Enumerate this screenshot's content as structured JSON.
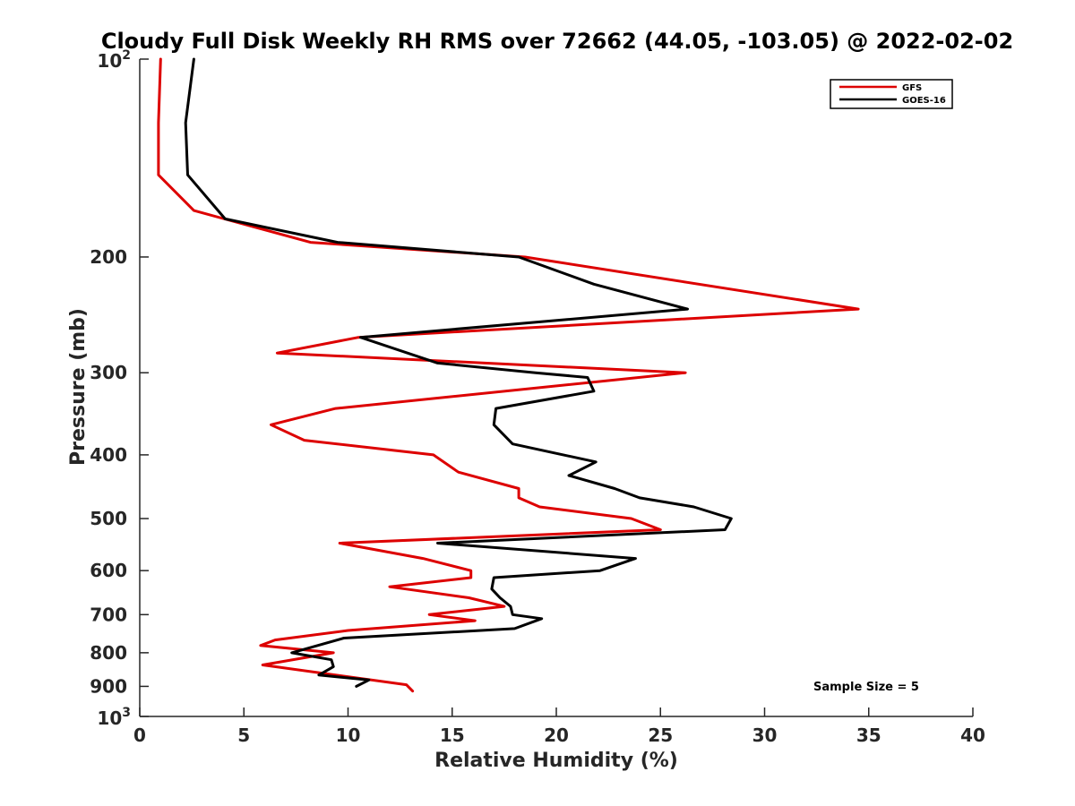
{
  "chart_data": {
    "type": "line",
    "title": "Cloudy Full Disk Weekly RH RMS over 72662 (44.05, -103.05) @ 2022-02-02",
    "xlabel": "Relative Humidity (%)",
    "ylabel": "Pressure (mb)",
    "xlim": [
      0,
      40
    ],
    "ylim": [
      100,
      1000
    ],
    "y_scale": "log",
    "y_reversed": true,
    "grid": false,
    "legend_position": "top-right",
    "x_ticks": [
      0,
      5,
      10,
      15,
      20,
      25,
      30,
      35,
      40
    ],
    "x_tick_labels": [
      "0",
      "5",
      "10",
      "15",
      "20",
      "25",
      "30",
      "35",
      "40"
    ],
    "y_ticks": [
      200,
      300,
      400,
      500,
      600,
      700,
      800,
      900
    ],
    "y_tick_labels": [
      "200",
      "300",
      "400",
      "500",
      "600",
      "700",
      "800",
      "900"
    ],
    "y_end_labels": {
      "top": {
        "base": "10",
        "exp": "2"
      },
      "bottom": {
        "base": "10",
        "exp": "3"
      }
    },
    "annotation": "Sample Size = 5",
    "series": [
      {
        "name": "GFS",
        "color": "#dd0000",
        "points": [
          [
            1.0,
            100
          ],
          [
            0.9,
            125
          ],
          [
            0.9,
            150
          ],
          [
            2.6,
            170
          ],
          [
            8.2,
            190
          ],
          [
            18.5,
            200
          ],
          [
            34.5,
            240
          ],
          [
            10.5,
            265
          ],
          [
            6.6,
            280
          ],
          [
            26.2,
            300
          ],
          [
            9.4,
            340
          ],
          [
            6.3,
            360
          ],
          [
            7.9,
            380
          ],
          [
            14.1,
            400
          ],
          [
            15.3,
            425
          ],
          [
            18.2,
            450
          ],
          [
            18.2,
            465
          ],
          [
            19.2,
            480
          ],
          [
            23.6,
            500
          ],
          [
            25.0,
            520
          ],
          [
            9.6,
            545
          ],
          [
            13.6,
            575
          ],
          [
            15.9,
            600
          ],
          [
            15.9,
            615
          ],
          [
            12.0,
            635
          ],
          [
            15.8,
            660
          ],
          [
            17.5,
            680
          ],
          [
            13.9,
            700
          ],
          [
            16.1,
            715
          ],
          [
            10.0,
            740
          ],
          [
            6.5,
            765
          ],
          [
            5.8,
            780
          ],
          [
            9.3,
            800
          ],
          [
            5.9,
            835
          ],
          [
            12.8,
            895
          ],
          [
            13.1,
            915
          ]
        ]
      },
      {
        "name": "GOES-16",
        "color": "#000000",
        "points": [
          [
            2.6,
            100
          ],
          [
            2.2,
            125
          ],
          [
            2.3,
            150
          ],
          [
            4.1,
            175
          ],
          [
            9.5,
            190
          ],
          [
            18.2,
            200
          ],
          [
            21.8,
            220
          ],
          [
            26.3,
            240
          ],
          [
            10.6,
            265
          ],
          [
            14.3,
            290
          ],
          [
            19.0,
            300
          ],
          [
            21.5,
            305
          ],
          [
            21.8,
            320
          ],
          [
            17.1,
            340
          ],
          [
            17.0,
            360
          ],
          [
            17.9,
            385
          ],
          [
            21.9,
            410
          ],
          [
            20.6,
            430
          ],
          [
            22.8,
            450
          ],
          [
            24.0,
            465
          ],
          [
            26.6,
            480
          ],
          [
            28.4,
            500
          ],
          [
            28.1,
            520
          ],
          [
            14.3,
            545
          ],
          [
            23.8,
            575
          ],
          [
            22.1,
            600
          ],
          [
            17.0,
            615
          ],
          [
            16.9,
            640
          ],
          [
            17.3,
            660
          ],
          [
            17.8,
            680
          ],
          [
            17.9,
            700
          ],
          [
            19.3,
            710
          ],
          [
            18.0,
            735
          ],
          [
            9.8,
            760
          ],
          [
            7.3,
            800
          ],
          [
            9.2,
            820
          ],
          [
            9.3,
            840
          ],
          [
            8.6,
            865
          ],
          [
            11.0,
            880
          ],
          [
            10.4,
            900
          ]
        ]
      }
    ]
  }
}
